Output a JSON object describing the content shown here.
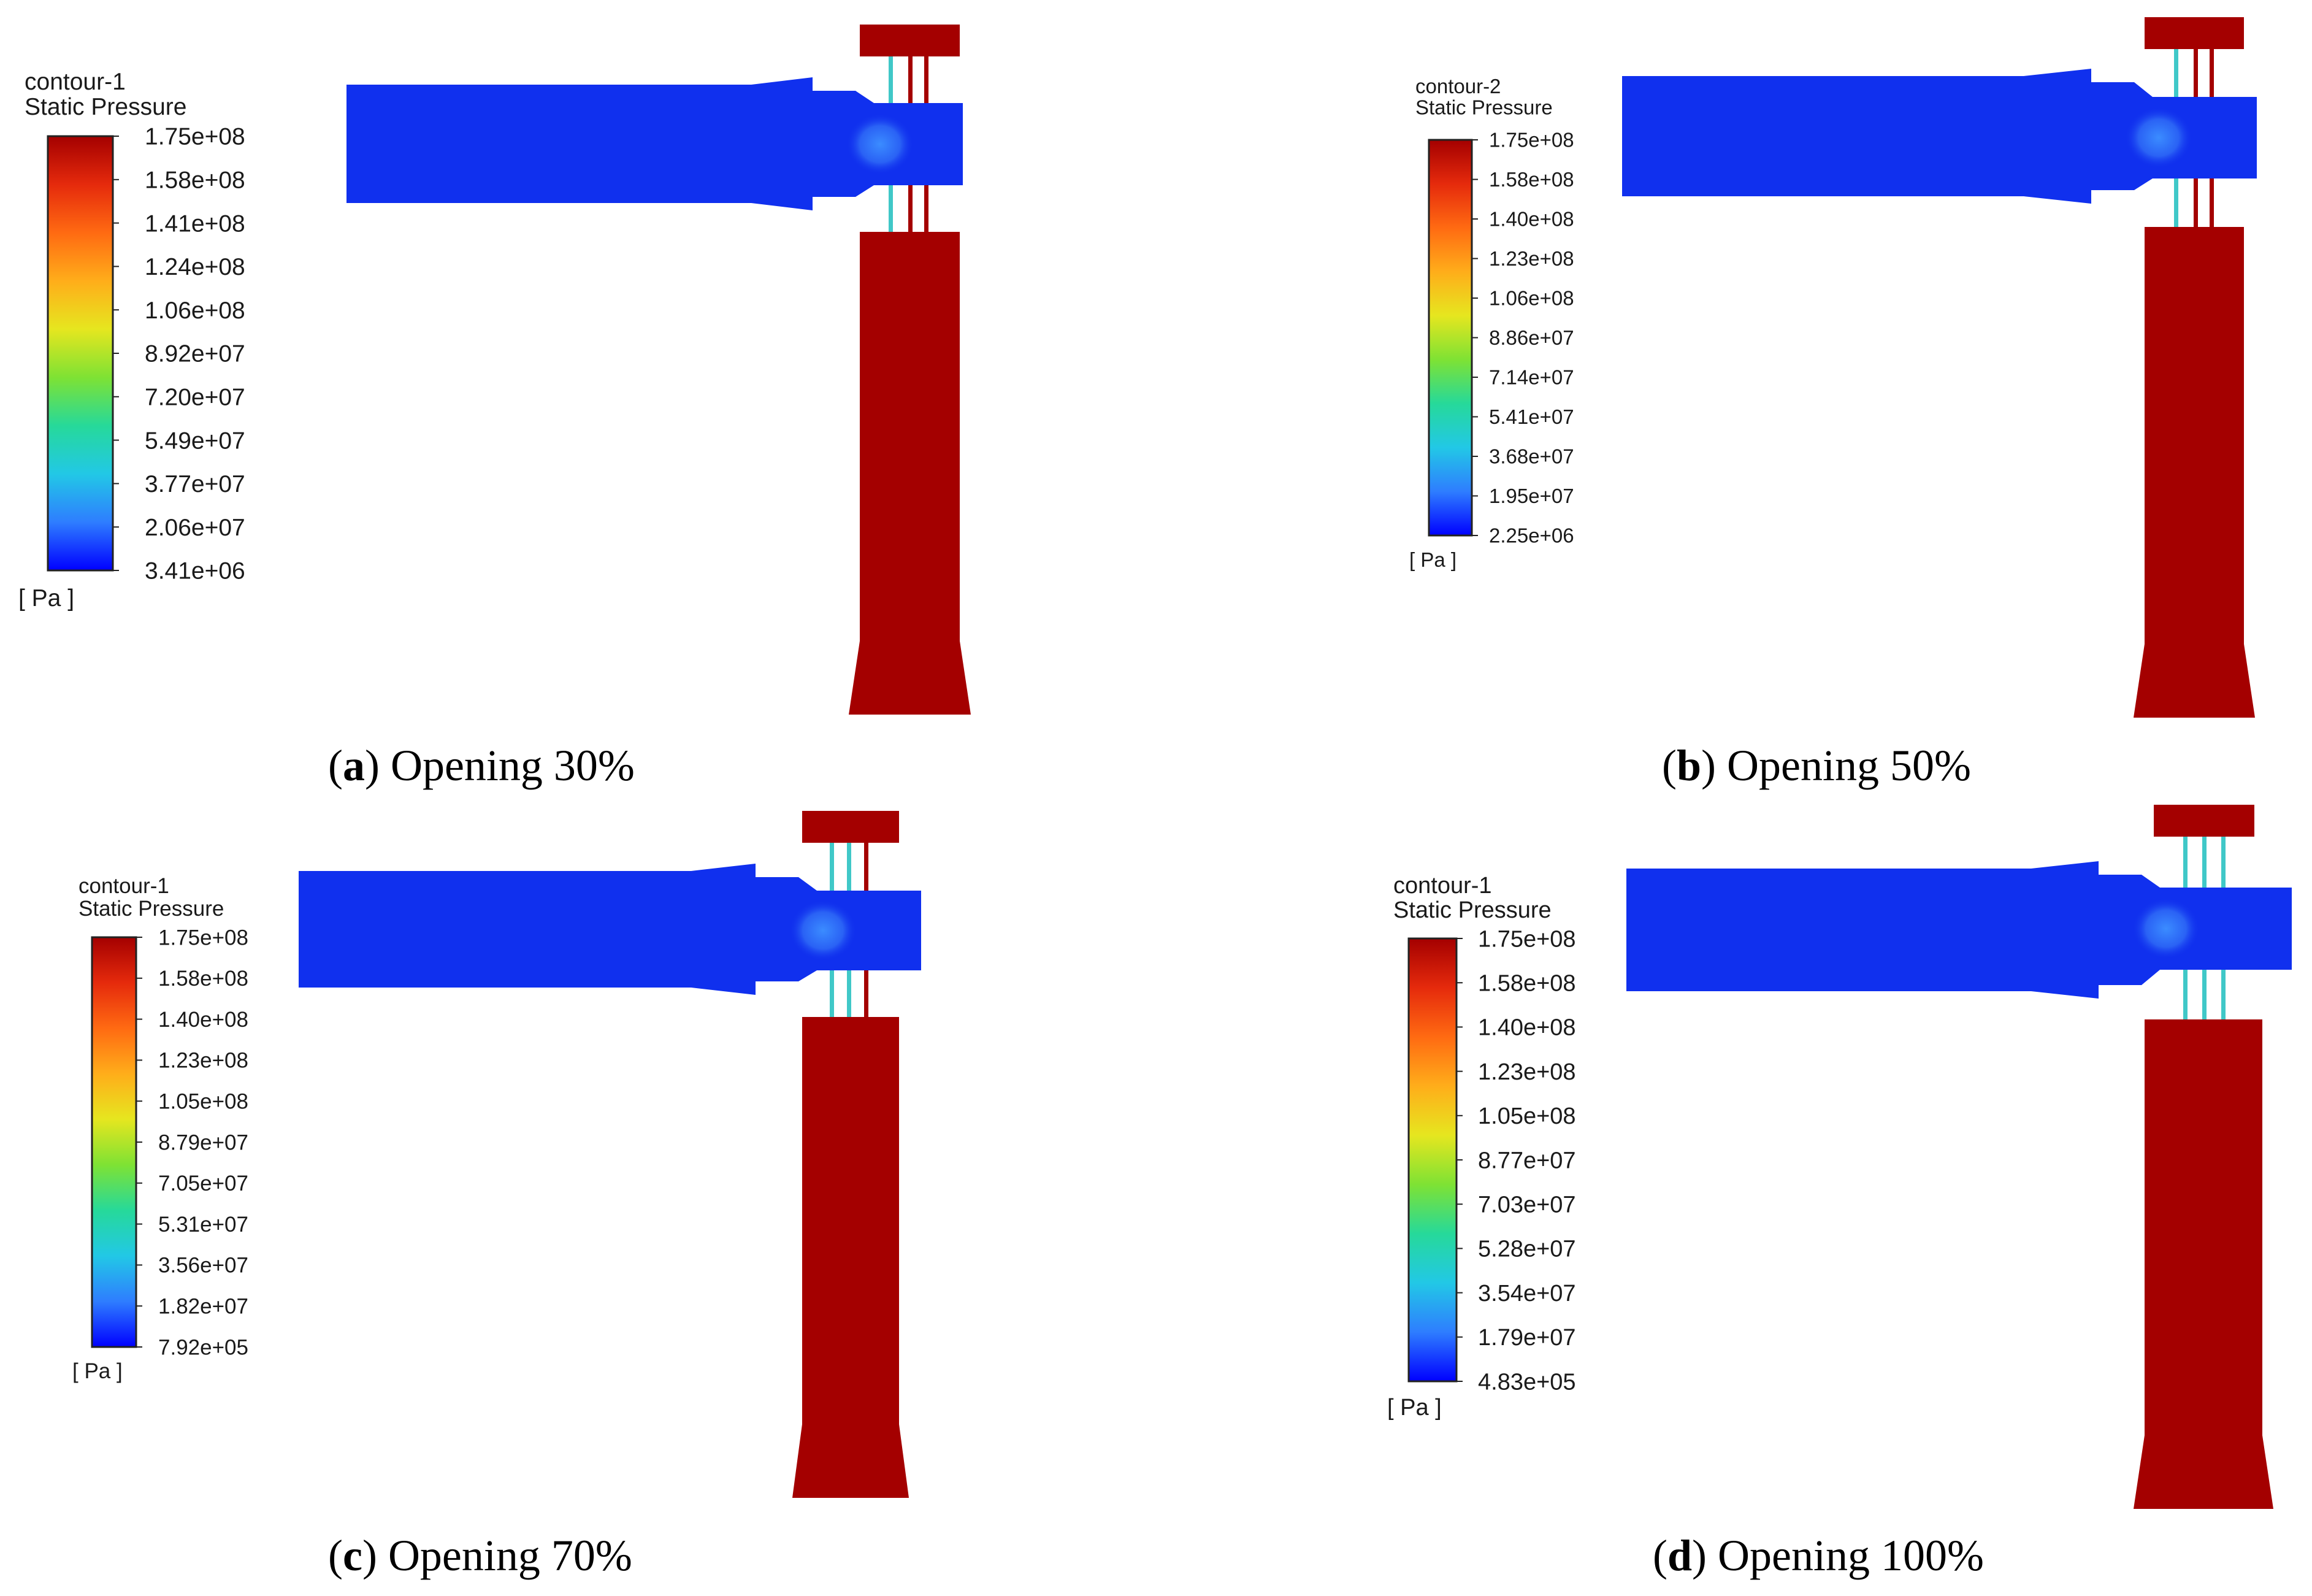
{
  "colors": {
    "low": "#1030ee",
    "high": "#a40000",
    "valve_passage": "#40c8c8",
    "colormap": [
      "#0000ff",
      "#2e7dff",
      "#22c8e6",
      "#26d99a",
      "#7ee234",
      "#e6e61f",
      "#ffad1a",
      "#ff6a12",
      "#e52a0c",
      "#a40000"
    ]
  },
  "panels": [
    {
      "id": "a",
      "caption": {
        "letter": "a",
        "text": " Opening 30%"
      },
      "legend": {
        "title": "contour-1",
        "subtitle": "Static Pressure",
        "unit": "[ Pa ]",
        "ticks": [
          "1.75e+08",
          "1.58e+08",
          "1.41e+08",
          "1.24e+08",
          "1.06e+08",
          "8.92e+07",
          "7.20e+07",
          "5.49e+07",
          "3.77e+07",
          "2.06e+07",
          "3.41e+06"
        ]
      },
      "opening_percent": 30
    },
    {
      "id": "b",
      "caption": {
        "letter": "b",
        "text": " Opening 50%"
      },
      "legend": {
        "title": "contour-2",
        "subtitle": "Static Pressure",
        "unit": "[ Pa ]",
        "ticks": [
          "1.75e+08",
          "1.58e+08",
          "1.40e+08",
          "1.23e+08",
          "1.06e+08",
          "8.86e+07",
          "7.14e+07",
          "5.41e+07",
          "3.68e+07",
          "1.95e+07",
          "2.25e+06"
        ]
      },
      "opening_percent": 50
    },
    {
      "id": "c",
      "caption": {
        "letter": "c",
        "text": " Opening 70%"
      },
      "legend": {
        "title": "contour-1",
        "subtitle": "Static Pressure",
        "unit": "[ Pa ]",
        "ticks": [
          "1.75e+08",
          "1.58e+08",
          "1.40e+08",
          "1.23e+08",
          "1.05e+08",
          "8.79e+07",
          "7.05e+07",
          "5.31e+07",
          "3.56e+07",
          "1.82e+07",
          "7.92e+05"
        ]
      },
      "opening_percent": 70
    },
    {
      "id": "d",
      "caption": {
        "letter": "d",
        "text": " Opening 100%"
      },
      "legend": {
        "title": "contour-1",
        "subtitle": "Static Pressure",
        "unit": "[ Pa ]",
        "ticks": [
          "1.75e+08",
          "1.58e+08",
          "1.40e+08",
          "1.23e+08",
          "1.05e+08",
          "8.77e+07",
          "7.03e+07",
          "5.28e+07",
          "3.54e+07",
          "1.79e+07",
          "4.83e+05"
        ]
      },
      "opening_percent": 100
    }
  ]
}
